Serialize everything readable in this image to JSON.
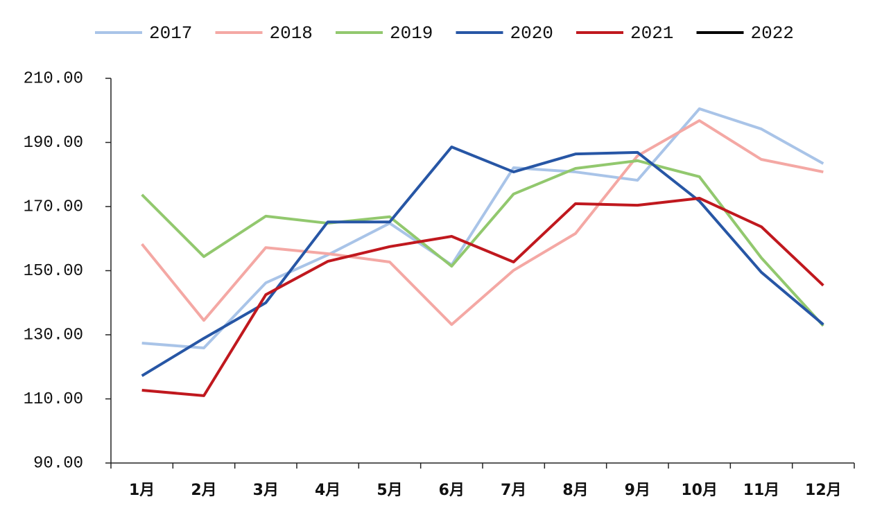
{
  "chart_data": {
    "type": "line",
    "categories": [
      "1月",
      "2月",
      "3月",
      "4月",
      "5月",
      "6月",
      "7月",
      "8月",
      "9月",
      "10月",
      "11月",
      "12月"
    ],
    "series": [
      {
        "name": "2017",
        "color": "#a9c4e8",
        "values": [
          127.4,
          125.9,
          146.2,
          154.9,
          164.8,
          151.8,
          182.1,
          180.8,
          178.2,
          200.5,
          194.2,
          183.4
        ]
      },
      {
        "name": "2018",
        "color": "#f4a8a4",
        "values": [
          158.3,
          134.5,
          157.2,
          155.3,
          152.7,
          133.2,
          150.1,
          161.6,
          185.8,
          196.8,
          184.7,
          180.8
        ]
      },
      {
        "name": "2019",
        "color": "#92c86e",
        "values": [
          173.7,
          154.4,
          167.0,
          164.8,
          166.8,
          151.4,
          173.9,
          181.9,
          184.3,
          179.3,
          154.0,
          132.8
        ]
      },
      {
        "name": "2020",
        "color": "#2756a5",
        "values": [
          117.2,
          128.9,
          140.0,
          165.2,
          165.2,
          188.6,
          180.8,
          186.4,
          186.9,
          171.7,
          149.5,
          133.2
        ]
      },
      {
        "name": "2021",
        "color": "#c0181e",
        "values": [
          112.7,
          111.0,
          142.5,
          152.9,
          157.5,
          160.7,
          152.7,
          170.9,
          170.4,
          172.6,
          163.7,
          145.4
        ]
      },
      {
        "name": "2022",
        "color": "#000000",
        "values": [
          null,
          null,
          null,
          null,
          null,
          null,
          null,
          null,
          null,
          null,
          null,
          null
        ]
      }
    ],
    "ylim": [
      90,
      210
    ],
    "yticks": [
      {
        "value": 90,
        "label": "90.00"
      },
      {
        "value": 110,
        "label": "110.00"
      },
      {
        "value": 130,
        "label": "130.00"
      },
      {
        "value": 150,
        "label": "150.00"
      },
      {
        "value": 170,
        "label": "170.00"
      },
      {
        "value": 190,
        "label": "190.00"
      },
      {
        "value": 210,
        "label": "210.00"
      }
    ],
    "legend": "top"
  }
}
